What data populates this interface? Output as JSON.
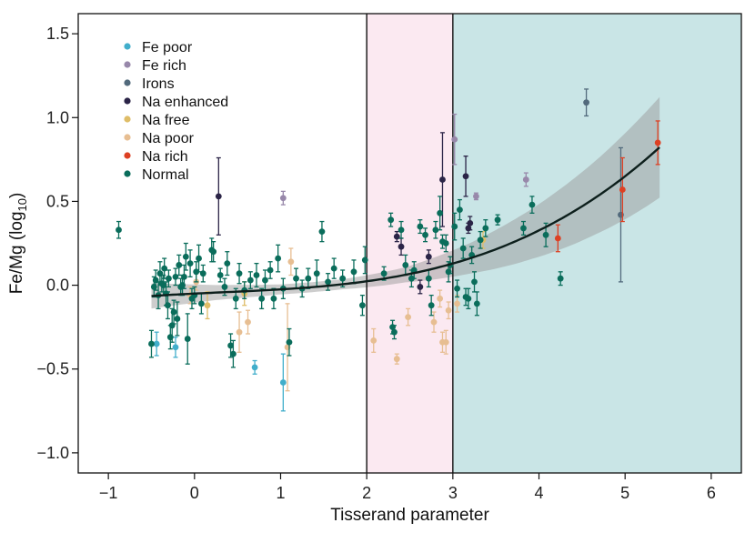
{
  "chart_data": {
    "type": "scatter",
    "title": "",
    "xlabel": "Tisserand parameter",
    "ylabel": "Fe/Mg (log10)",
    "ylabel_parts": {
      "main": "Fe/Mg (log",
      "sub": "10",
      "close": ")"
    },
    "xlim": [
      -1.35,
      6.35
    ],
    "ylim": [
      -1.12,
      1.62
    ],
    "xticks": [
      -1,
      0,
      1,
      2,
      3,
      4,
      5,
      6
    ],
    "xtick_labels": [
      "−1",
      "0",
      "1",
      "2",
      "3",
      "4",
      "5",
      "6"
    ],
    "yticks": [
      -1.0,
      -0.5,
      0.0,
      0.5,
      1.0,
      1.5
    ],
    "ytick_labels": [
      "−1.0",
      "−0.5",
      "0.0",
      "0.5",
      "1.0",
      "1.5"
    ],
    "regions": [
      {
        "name": "middle-region",
        "x0": 2.0,
        "x1": 3.0,
        "color": "#fbe9f1"
      },
      {
        "name": "right-region",
        "x0": 3.0,
        "x1": 6.35,
        "color": "#c9e5e6"
      }
    ],
    "vlines": [
      2.0,
      3.0
    ],
    "fit": {
      "x0": -0.5,
      "x1": 5.4,
      "coeffs": [
        -0.05,
        0.025,
        -0.0055,
        0.0057
      ],
      "band_halfwidth": [
        0.075,
        0.045,
        0.03,
        0.03,
        0.045,
        0.09,
        0.15,
        0.22,
        0.3
      ],
      "line_color": "#0d1f1c",
      "band_color": "#9c9c9c"
    },
    "legend": {
      "position": "top-left",
      "entries": [
        {
          "label": "Fe poor",
          "color": "#41aecb"
        },
        {
          "label": "Fe rich",
          "color": "#9888aa"
        },
        {
          "label": "Irons",
          "color": "#526a7c"
        },
        {
          "label": "Na enhanced",
          "color": "#2b2447"
        },
        {
          "label": "Na free",
          "color": "#dfbd68"
        },
        {
          "label": "Na poor",
          "color": "#e7be92"
        },
        {
          "label": "Na rich",
          "color": "#dd4023"
        },
        {
          "label": "Normal",
          "color": "#0a6d5b"
        }
      ]
    },
    "series": [
      {
        "name": "Fe poor",
        "color": "#41aecb",
        "points": [
          {
            "x": -0.44,
            "y": -0.35,
            "e": 0.07
          },
          {
            "x": -0.22,
            "y": -0.37,
            "e": 0.06
          },
          {
            "x": 0.7,
            "y": -0.49,
            "e": 0.04
          },
          {
            "x": 1.03,
            "y": -0.58,
            "e": 0.17
          }
        ]
      },
      {
        "name": "Fe rich",
        "color": "#9888aa",
        "points": [
          {
            "x": 1.03,
            "y": 0.52,
            "e": 0.04
          },
          {
            "x": 3.27,
            "y": 0.53,
            "e": 0.02
          },
          {
            "x": 3.85,
            "y": 0.63,
            "e": 0.04
          },
          {
            "x": 3.02,
            "y": 0.87,
            "e": 0.15
          }
        ]
      },
      {
        "name": "Irons",
        "color": "#526a7c",
        "points": [
          {
            "x": 4.55,
            "y": 1.09,
            "e": 0.08
          },
          {
            "x": 4.95,
            "y": 0.42,
            "e": 0.4
          }
        ]
      },
      {
        "name": "Na enhanced",
        "color": "#2b2447",
        "points": [
          {
            "x": 0.28,
            "y": 0.53,
            "e": 0.23
          },
          {
            "x": 2.88,
            "y": 0.63,
            "e": 0.28
          },
          {
            "x": 3.15,
            "y": 0.65,
            "e": 0.12
          },
          {
            "x": 2.62,
            "y": -0.01,
            "e": 0.04
          },
          {
            "x": 2.4,
            "y": 0.23,
            "e": 0.05
          },
          {
            "x": 2.35,
            "y": 0.29,
            "e": 0.03
          },
          {
            "x": 3.2,
            "y": 0.37,
            "e": 0.04
          },
          {
            "x": 2.72,
            "y": 0.17,
            "e": 0.04
          },
          {
            "x": 3.18,
            "y": 0.34,
            "e": 0.03
          }
        ]
      },
      {
        "name": "Na free",
        "color": "#dfbd68",
        "points": [
          {
            "x": 0.15,
            "y": -0.12,
            "e": 0.08
          },
          {
            "x": 0.58,
            "y": -0.05,
            "e": 0.07
          },
          {
            "x": 3.35,
            "y": 0.27,
            "e": 0.05
          }
        ]
      },
      {
        "name": "Na poor",
        "color": "#e7be92",
        "points": [
          {
            "x": 1.12,
            "y": 0.14,
            "e": 0.08
          },
          {
            "x": 1.08,
            "y": -0.37,
            "e": 0.26
          },
          {
            "x": 0.52,
            "y": -0.28,
            "e": 0.12
          },
          {
            "x": 0.62,
            "y": -0.22,
            "e": 0.07
          },
          {
            "x": 2.08,
            "y": -0.33,
            "e": 0.07
          },
          {
            "x": 2.35,
            "y": -0.44,
            "e": 0.03
          },
          {
            "x": 2.88,
            "y": -0.34,
            "e": 0.06
          },
          {
            "x": 2.92,
            "y": -0.34,
            "e": 0.07
          },
          {
            "x": 2.48,
            "y": -0.19,
            "e": 0.05
          },
          {
            "x": 2.78,
            "y": -0.22,
            "e": 0.06
          },
          {
            "x": 2.85,
            "y": -0.08,
            "e": 0.05
          },
          {
            "x": 2.95,
            "y": -0.15,
            "e": 0.05
          },
          {
            "x": 3.05,
            "y": -0.11,
            "e": 0.05
          },
          {
            "x": 0.02,
            "y": 0.02,
            "e": 0.05
          },
          {
            "x": -0.05,
            "y": -0.06,
            "e": 0.05
          }
        ]
      },
      {
        "name": "Na rich",
        "color": "#dd4023",
        "points": [
          {
            "x": 4.22,
            "y": 0.28,
            "e": 0.08
          },
          {
            "x": 4.97,
            "y": 0.57,
            "e": 0.19
          },
          {
            "x": 5.38,
            "y": 0.85,
            "e": 0.13
          }
        ]
      },
      {
        "name": "Normal",
        "color": "#0a6d5b",
        "points": [
          {
            "x": -0.88,
            "y": 0.33,
            "e": 0.05
          },
          {
            "x": -0.5,
            "y": -0.35,
            "e": 0.08
          },
          {
            "x": -0.47,
            "y": -0.01,
            "e": 0.06
          },
          {
            "x": -0.45,
            "y": 0.03,
            "e": 0.06
          },
          {
            "x": -0.42,
            "y": -0.06,
            "e": 0.08
          },
          {
            "x": -0.4,
            "y": 0.07,
            "e": 0.07
          },
          {
            "x": -0.38,
            "y": 0.01,
            "e": 0.05
          },
          {
            "x": -0.36,
            "y": 0.0,
            "e": 0.06
          },
          {
            "x": -0.35,
            "y": 0.1,
            "e": 0.06
          },
          {
            "x": -0.33,
            "y": -0.05,
            "e": 0.07
          },
          {
            "x": -0.31,
            "y": -0.12,
            "e": 0.08
          },
          {
            "x": -0.3,
            "y": 0.04,
            "e": 0.05
          },
          {
            "x": -0.28,
            "y": -0.31,
            "e": 0.07
          },
          {
            "x": -0.26,
            "y": -0.24,
            "e": 0.1
          },
          {
            "x": -0.24,
            "y": -0.16,
            "e": 0.07
          },
          {
            "x": -0.22,
            "y": 0.05,
            "e": 0.05
          },
          {
            "x": -0.2,
            "y": -0.2,
            "e": 0.1
          },
          {
            "x": -0.18,
            "y": 0.12,
            "e": 0.06
          },
          {
            "x": -0.16,
            "y": -0.01,
            "e": 0.05
          },
          {
            "x": -0.14,
            "y": 0.0,
            "e": 0.06
          },
          {
            "x": -0.12,
            "y": 0.05,
            "e": 0.07
          },
          {
            "x": -0.1,
            "y": 0.17,
            "e": 0.08
          },
          {
            "x": -0.08,
            "y": -0.32,
            "e": 0.15
          },
          {
            "x": -0.05,
            "y": 0.13,
            "e": 0.08
          },
          {
            "x": -0.03,
            "y": -0.08,
            "e": 0.06
          },
          {
            "x": 0.0,
            "y": -0.06,
            "e": 0.05
          },
          {
            "x": 0.02,
            "y": 0.08,
            "e": 0.06
          },
          {
            "x": 0.05,
            "y": 0.16,
            "e": 0.08
          },
          {
            "x": 0.08,
            "y": -0.11,
            "e": 0.06
          },
          {
            "x": 0.1,
            "y": 0.07,
            "e": 0.05
          },
          {
            "x": 0.2,
            "y": 0.21,
            "e": 0.07
          },
          {
            "x": 0.22,
            "y": 0.2,
            "e": 0.06
          },
          {
            "x": 0.3,
            "y": 0.06,
            "e": 0.04
          },
          {
            "x": 0.35,
            "y": -0.01,
            "e": 0.05
          },
          {
            "x": 0.38,
            "y": 0.13,
            "e": 0.07
          },
          {
            "x": 0.42,
            "y": -0.36,
            "e": 0.07
          },
          {
            "x": 0.45,
            "y": -0.41,
            "e": 0.08
          },
          {
            "x": 0.48,
            "y": -0.08,
            "e": 0.06
          },
          {
            "x": 0.52,
            "y": 0.07,
            "e": 0.06
          },
          {
            "x": 0.58,
            "y": -0.03,
            "e": 0.05
          },
          {
            "x": 0.65,
            "y": 0.03,
            "e": 0.05
          },
          {
            "x": 0.72,
            "y": 0.06,
            "e": 0.07
          },
          {
            "x": 0.78,
            "y": -0.08,
            "e": 0.06
          },
          {
            "x": 0.82,
            "y": 0.03,
            "e": 0.06
          },
          {
            "x": 0.88,
            "y": 0.09,
            "e": 0.05
          },
          {
            "x": 0.92,
            "y": -0.08,
            "e": 0.06
          },
          {
            "x": 0.97,
            "y": 0.16,
            "e": 0.08
          },
          {
            "x": 1.03,
            "y": -0.02,
            "e": 0.06
          },
          {
            "x": 1.1,
            "y": -0.34,
            "e": 0.08
          },
          {
            "x": 1.18,
            "y": 0.04,
            "e": 0.06
          },
          {
            "x": 1.25,
            "y": -0.02,
            "e": 0.05
          },
          {
            "x": 1.32,
            "y": 0.04,
            "e": 0.06
          },
          {
            "x": 1.42,
            "y": 0.07,
            "e": 0.08
          },
          {
            "x": 1.48,
            "y": 0.32,
            "e": 0.06
          },
          {
            "x": 1.55,
            "y": 0.02,
            "e": 0.05
          },
          {
            "x": 1.62,
            "y": 0.1,
            "e": 0.06
          },
          {
            "x": 1.72,
            "y": 0.04,
            "e": 0.05
          },
          {
            "x": 1.85,
            "y": 0.08,
            "e": 0.07
          },
          {
            "x": 1.95,
            "y": -0.12,
            "e": 0.06
          },
          {
            "x": 1.98,
            "y": 0.15,
            "e": 0.08
          },
          {
            "x": 2.2,
            "y": 0.07,
            "e": 0.04
          },
          {
            "x": 2.28,
            "y": 0.39,
            "e": 0.04
          },
          {
            "x": 2.3,
            "y": -0.25,
            "e": 0.04
          },
          {
            "x": 2.32,
            "y": -0.28,
            "e": 0.04
          },
          {
            "x": 2.4,
            "y": 0.33,
            "e": 0.05
          },
          {
            "x": 2.45,
            "y": 0.12,
            "e": 0.06
          },
          {
            "x": 2.52,
            "y": 0.04,
            "e": 0.05
          },
          {
            "x": 2.55,
            "y": 0.09,
            "e": 0.05
          },
          {
            "x": 2.62,
            "y": 0.35,
            "e": 0.04
          },
          {
            "x": 2.68,
            "y": 0.3,
            "e": 0.04
          },
          {
            "x": 2.72,
            "y": 0.04,
            "e": 0.05
          },
          {
            "x": 2.75,
            "y": -0.12,
            "e": 0.06
          },
          {
            "x": 2.8,
            "y": 0.33,
            "e": 0.05
          },
          {
            "x": 2.85,
            "y": 0.43,
            "e": 0.1
          },
          {
            "x": 2.88,
            "y": 0.26,
            "e": 0.04
          },
          {
            "x": 2.92,
            "y": 0.25,
            "e": 0.05
          },
          {
            "x": 2.95,
            "y": 0.08,
            "e": 0.06
          },
          {
            "x": 2.97,
            "y": 0.12,
            "e": 0.05
          },
          {
            "x": 3.02,
            "y": 0.35,
            "e": 0.08
          },
          {
            "x": 3.05,
            "y": -0.02,
            "e": 0.05
          },
          {
            "x": 3.08,
            "y": 0.45,
            "e": 0.06
          },
          {
            "x": 3.12,
            "y": 0.22,
            "e": 0.06
          },
          {
            "x": 3.15,
            "y": -0.07,
            "e": 0.05
          },
          {
            "x": 3.18,
            "y": -0.08,
            "e": 0.06
          },
          {
            "x": 3.22,
            "y": 0.18,
            "e": 0.05
          },
          {
            "x": 3.25,
            "y": 0.02,
            "e": 0.06
          },
          {
            "x": 3.28,
            "y": -0.11,
            "e": 0.07
          },
          {
            "x": 3.32,
            "y": 0.27,
            "e": 0.05
          },
          {
            "x": 3.38,
            "y": 0.34,
            "e": 0.05
          },
          {
            "x": 3.52,
            "y": 0.39,
            "e": 0.03
          },
          {
            "x": 3.82,
            "y": 0.34,
            "e": 0.04
          },
          {
            "x": 3.92,
            "y": 0.48,
            "e": 0.05
          },
          {
            "x": 4.08,
            "y": 0.3,
            "e": 0.07
          },
          {
            "x": 4.25,
            "y": 0.04,
            "e": 0.04
          }
        ]
      }
    ]
  }
}
